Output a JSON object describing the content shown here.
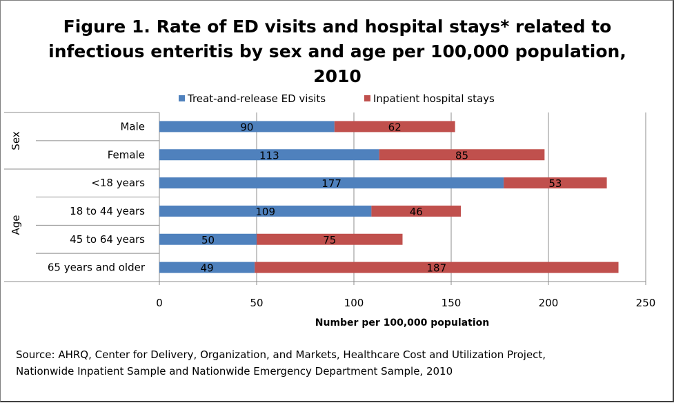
{
  "chart_data": {
    "type": "bar",
    "orientation": "horizontal",
    "stacked": true,
    "title": "Figure 1. Rate of ED visits and hospital stays* related to infectious enteritis by sex and age per 100,000 population, 2010",
    "title_lines": [
      "Figure 1. Rate of ED visits and hospital stays* related to",
      "infectious enteritis by sex and age per 100,000 population,",
      "2010"
    ],
    "groups": [
      {
        "name": "Sex",
        "categories": [
          "Male",
          "Female"
        ]
      },
      {
        "name": "Age",
        "categories": [
          "<18 years",
          "18 to 44 years",
          "45 to 64 years",
          "65 years and older"
        ]
      }
    ],
    "categories": [
      "Male",
      "Female",
      "<18 years",
      "18 to 44 years",
      "45 to 64 years",
      "65 years and older"
    ],
    "series": [
      {
        "name": "Treat-and-release ED visits",
        "color": "#4f81bd",
        "values": [
          90,
          113,
          177,
          109,
          50,
          49
        ]
      },
      {
        "name": "Inpatient hospital stays",
        "color": "#c0504d",
        "values": [
          62,
          85,
          53,
          46,
          75,
          187
        ]
      }
    ],
    "xlabel": "Number per 100,000 population",
    "ylabel": "",
    "xlim": [
      0,
      250
    ],
    "xticks": [
      "0",
      "50",
      "100",
      "150",
      "200",
      "250"
    ],
    "grid": "vertical",
    "legend": "top"
  },
  "source": [
    "Source: AHRQ, Center for Delivery, Organization, and Markets, Healthcare Cost and Utilization Project,",
    "Nationwide Inpatient Sample and Nationwide Emergency Department Sample, 2010"
  ]
}
